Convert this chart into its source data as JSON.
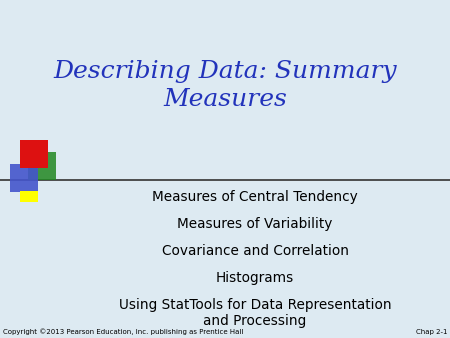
{
  "title": "Describing Data: Summary\nMeasures",
  "title_color": "#2233BB",
  "background_color": "#ddeaf2",
  "bullet_items": [
    "Measures of Central Tendency",
    "Measures of Variability",
    "Covariance and Correlation",
    "Histograms",
    "Using StatTools for Data Representation\nand Processing"
  ],
  "bullet_color": "#000000",
  "footer_left": "Copyright ©2013 Pearson Education, Inc. publishing as Prentice Hall",
  "footer_right": "Chap 2-1",
  "footer_color": "#000000"
}
